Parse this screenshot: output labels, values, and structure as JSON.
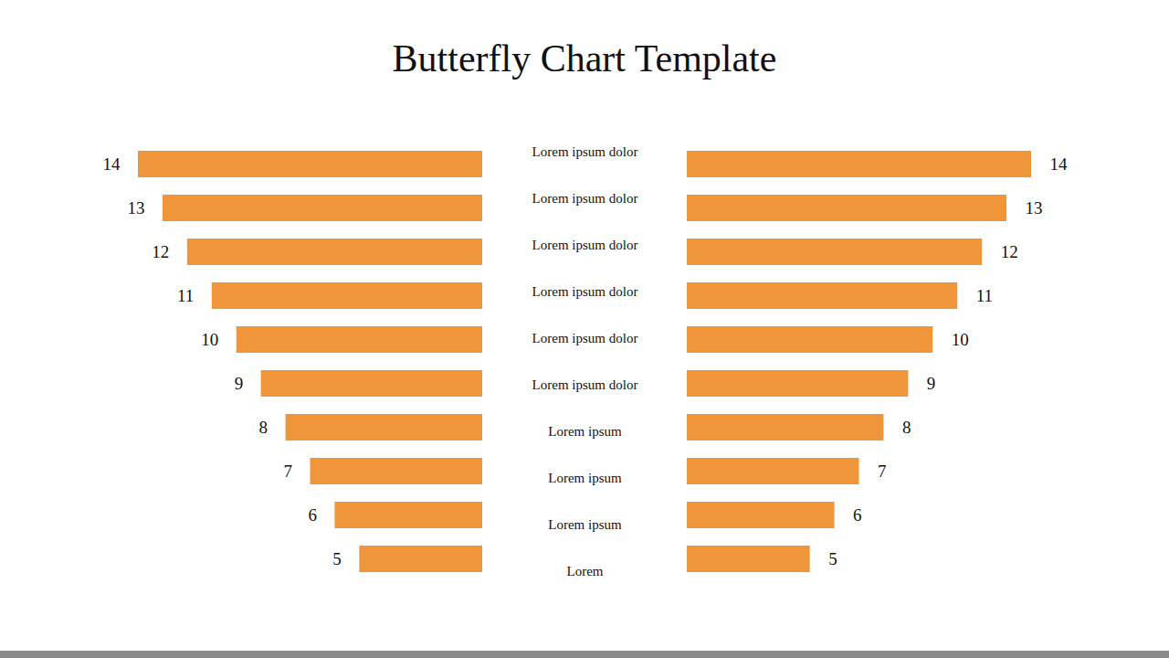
{
  "chart_data": {
    "type": "butterfly",
    "title": "Butterfly Chart Template",
    "orientation": "horizontal",
    "categories": [
      "Lorem ipsum dolor",
      "Lorem ipsum dolor",
      "Lorem ipsum dolor",
      "Lorem ipsum dolor",
      "Lorem ipsum dolor",
      "Lorem ipsum dolor",
      "Lorem ipsum",
      "Lorem ipsum",
      "Lorem ipsum",
      "Lorem"
    ],
    "series": [
      {
        "color": "#f0963a",
        "values": [
          14,
          13,
          12,
          11,
          10,
          9,
          8,
          7,
          6,
          5
        ]
      },
      {
        "color": "#f0963a",
        "values": [
          14,
          13,
          12,
          11,
          10,
          9,
          8,
          7,
          6,
          5
        ]
      }
    ],
    "xlim": [
      0,
      14
    ],
    "data_labels": true,
    "tick_labels": false,
    "grid": false
  }
}
